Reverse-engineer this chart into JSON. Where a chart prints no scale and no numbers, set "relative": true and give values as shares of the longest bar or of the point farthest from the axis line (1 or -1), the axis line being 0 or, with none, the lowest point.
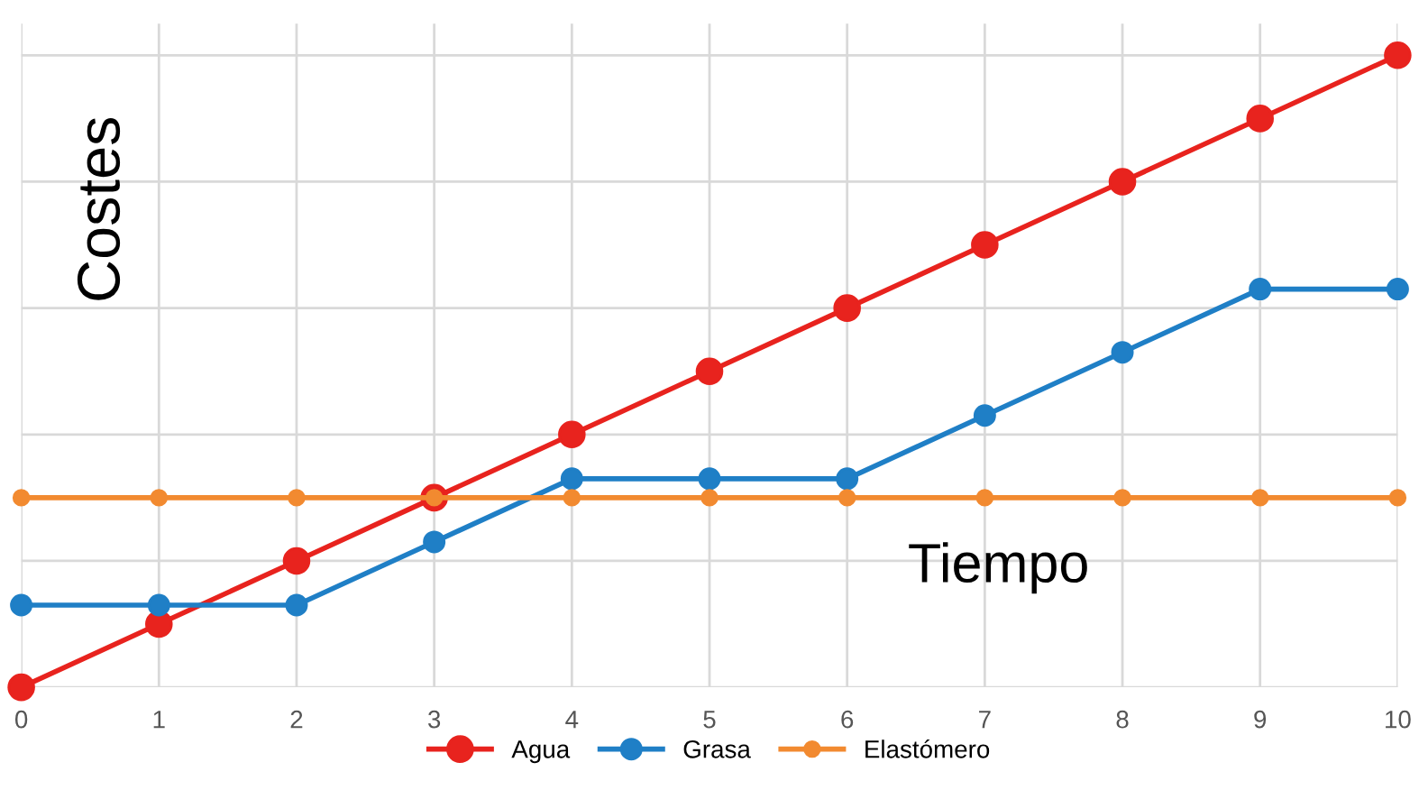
{
  "chart_data": {
    "type": "line",
    "relative": true,
    "ylabel": "Costes",
    "xlabel": "Tiempo",
    "x": [
      0,
      1,
      2,
      3,
      4,
      5,
      6,
      7,
      8,
      9,
      10
    ],
    "xlim": [
      0,
      10
    ],
    "xticks": [
      0,
      1,
      2,
      3,
      4,
      5,
      6,
      7,
      8,
      9,
      10
    ],
    "series": [
      {
        "name": "Agua",
        "color": "#e8231e",
        "values": [
          0,
          0.1,
          0.2,
          0.3,
          0.4,
          0.5,
          0.6,
          0.7,
          0.8,
          0.9,
          1
        ]
      },
      {
        "name": "Grasa",
        "color": "#1f7fc6",
        "values": [
          0.13,
          0.13,
          0.13,
          0.23,
          0.33,
          0.33,
          0.33,
          0.43,
          0.53,
          0.63,
          0.63
        ]
      },
      {
        "name": "Elastómero",
        "color": "#f28a30",
        "values": [
          0.3,
          0.3,
          0.3,
          0.3,
          0.3,
          0.3,
          0.3,
          0.3,
          0.3,
          0.3,
          0.3
        ]
      }
    ],
    "marker": "circle",
    "line_style": "solid",
    "grid": true,
    "legend": "bottom",
    "tick_labels": "x"
  }
}
